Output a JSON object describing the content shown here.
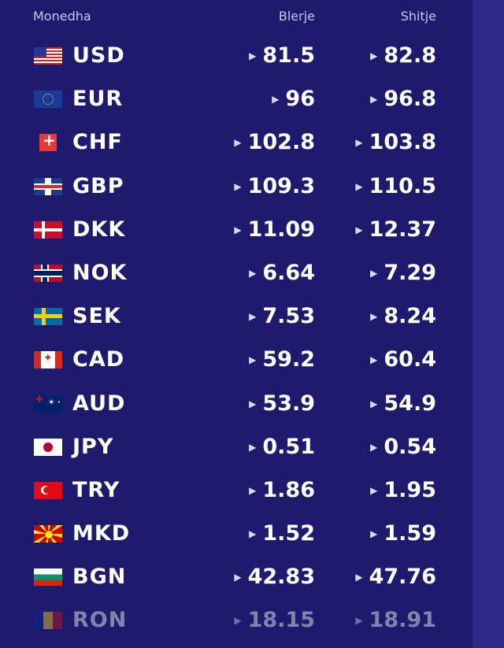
{
  "header": {
    "currency": "Monedha",
    "buy": "Blerje",
    "sell": "Shitje"
  },
  "rows": [
    {
      "code": "USD",
      "flag": "us-flag-icon",
      "buy": "81.5",
      "sell": "82.8"
    },
    {
      "code": "EUR",
      "flag": "eu-flag-icon",
      "buy": "96",
      "sell": "96.8"
    },
    {
      "code": "CHF",
      "flag": "ch-flag-icon",
      "buy": "102.8",
      "sell": "103.8"
    },
    {
      "code": "GBP",
      "flag": "gb-flag-icon",
      "buy": "109.3",
      "sell": "110.5"
    },
    {
      "code": "DKK",
      "flag": "dk-flag-icon",
      "buy": "11.09",
      "sell": "12.37"
    },
    {
      "code": "NOK",
      "flag": "no-flag-icon",
      "buy": "6.64",
      "sell": "7.29"
    },
    {
      "code": "SEK",
      "flag": "se-flag-icon",
      "buy": "7.53",
      "sell": "8.24"
    },
    {
      "code": "CAD",
      "flag": "ca-flag-icon",
      "buy": "59.2",
      "sell": "60.4"
    },
    {
      "code": "AUD",
      "flag": "au-flag-icon",
      "buy": "53.9",
      "sell": "54.9"
    },
    {
      "code": "JPY",
      "flag": "jp-flag-icon",
      "buy": "0.51",
      "sell": "0.54"
    },
    {
      "code": "TRY",
      "flag": "tr-flag-icon",
      "buy": "1.86",
      "sell": "1.95"
    },
    {
      "code": "MKD",
      "flag": "mk-flag-icon",
      "buy": "1.52",
      "sell": "1.59"
    },
    {
      "code": "BGN",
      "flag": "bg-flag-icon",
      "buy": "42.83",
      "sell": "47.76"
    },
    {
      "code": "RON",
      "flag": "ro-flag-icon",
      "buy": "18.15",
      "sell": "18.91"
    }
  ],
  "colors": {
    "background": "#1e1b6e",
    "sidebar": "#2e2a8a",
    "text": "#ffffff"
  }
}
